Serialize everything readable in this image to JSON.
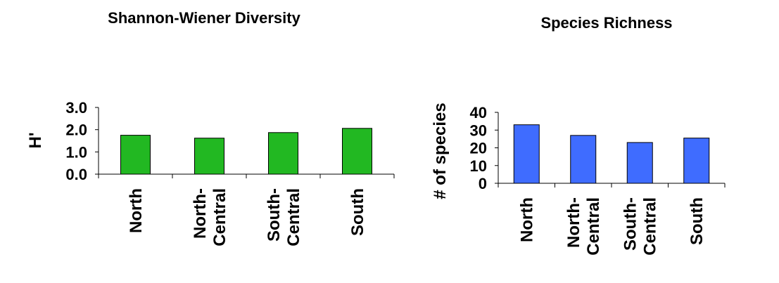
{
  "chart_data": [
    {
      "type": "bar",
      "title": "Shannon-Wiener Diversity",
      "ylabel": "H'",
      "xlabel": "",
      "categories": [
        [
          "North"
        ],
        [
          "North-",
          "Central"
        ],
        [
          "South-",
          "Central"
        ],
        [
          "South"
        ]
      ],
      "values": [
        1.75,
        1.62,
        1.87,
        2.06
      ],
      "ylim": [
        0,
        3
      ],
      "yticks": [
        "0.0",
        "1.0",
        "2.0",
        "3.0"
      ],
      "yticks_values": [
        0,
        1,
        2,
        3
      ],
      "bar_color": "#22b822",
      "grid": false
    },
    {
      "type": "bar",
      "title": "Species Richness",
      "ylabel": "# of species",
      "xlabel": "",
      "categories": [
        [
          "North"
        ],
        [
          "North-",
          "Central"
        ],
        [
          "South-",
          "Central"
        ],
        [
          "South"
        ]
      ],
      "values": [
        33,
        27,
        23,
        25.5
      ],
      "ylim": [
        0,
        40
      ],
      "yticks": [
        "0",
        "10",
        "20",
        "30",
        "40"
      ],
      "yticks_values": [
        0,
        10,
        20,
        30,
        40
      ],
      "bar_color": "#3f6cff",
      "grid": false
    }
  ]
}
